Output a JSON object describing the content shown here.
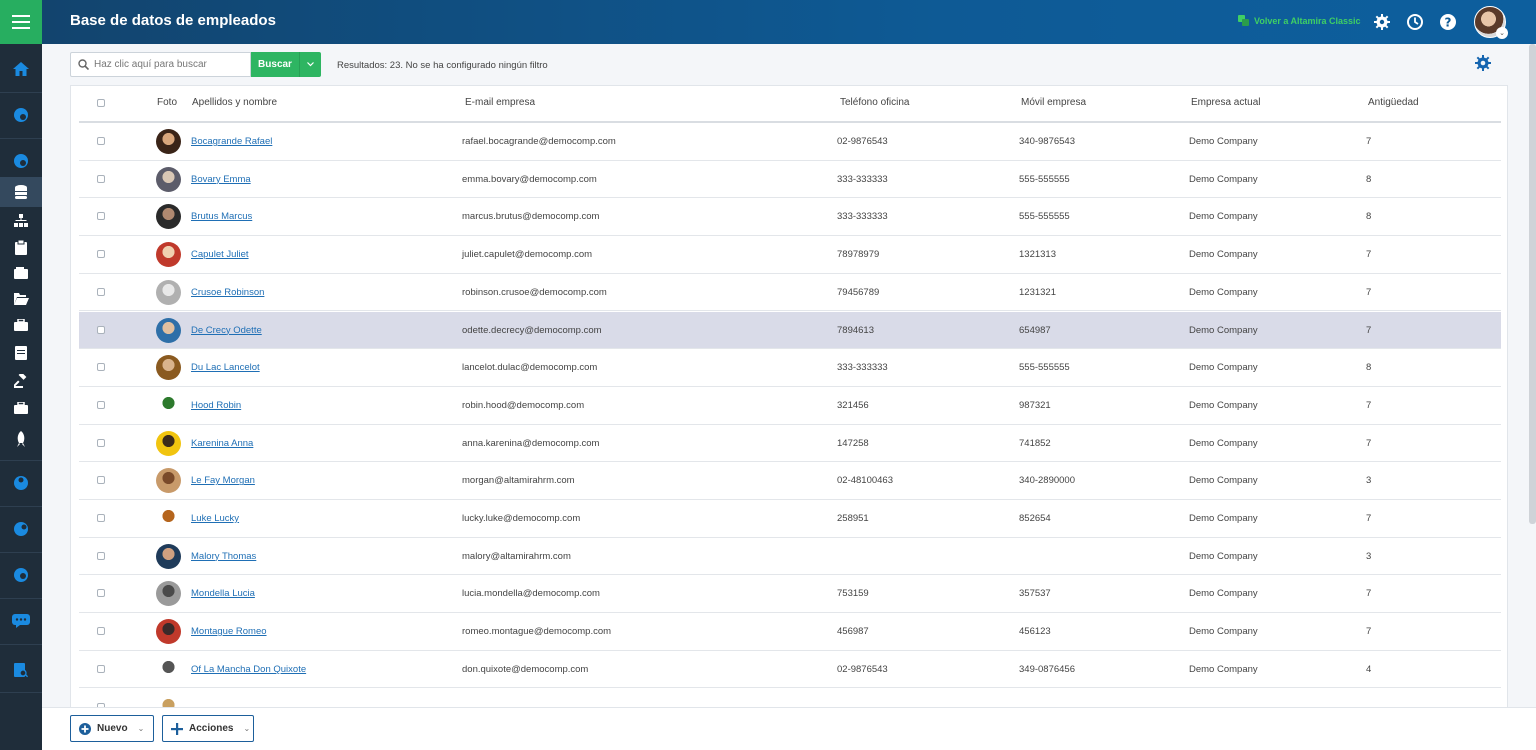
{
  "header": {
    "title": "Base de datos de empleados",
    "classic_link": "Volver a Altamira Classic",
    "icons": [
      "gear-icon",
      "clock-icon",
      "help-icon"
    ]
  },
  "search": {
    "placeholder": "Haz clic aquí para buscar",
    "button_label": "Buscar",
    "results_text": "Resultados: 23. No se ha configurado ningún filtro"
  },
  "table": {
    "headers": {
      "photo": "Foto",
      "name": "Apellidos y nombre",
      "email": "E-mail empresa",
      "office_phone": "Teléfono oficina",
      "mobile": "Móvil empresa",
      "company": "Empresa actual",
      "seniority": "Antigüedad"
    },
    "rows": [
      {
        "name": "Bocagrande Rafael",
        "email": "rafael.bocagrande@democomp.com",
        "office_phone": "02-9876543",
        "mobile": "340-9876543",
        "company": "Demo Company",
        "seniority": "7"
      },
      {
        "name": "Bovary Emma",
        "email": "emma.bovary@democomp.com",
        "office_phone": "333-333333",
        "mobile": "555-555555",
        "company": "Demo Company",
        "seniority": "8"
      },
      {
        "name": "Brutus Marcus",
        "email": "marcus.brutus@democomp.com",
        "office_phone": "333-333333",
        "mobile": "555-555555",
        "company": "Demo Company",
        "seniority": "8"
      },
      {
        "name": "Capulet Juliet",
        "email": "juliet.capulet@democomp.com",
        "office_phone": "78978979",
        "mobile": "1321313",
        "company": "Demo Company",
        "seniority": "7"
      },
      {
        "name": "Crusoe Robinson",
        "email": "robinson.crusoe@democomp.com",
        "office_phone": "79456789",
        "mobile": "1231321",
        "company": "Demo Company",
        "seniority": "7"
      },
      {
        "name": "De Crecy Odette",
        "email": "odette.decrecy@democomp.com",
        "office_phone": "7894613",
        "mobile": "654987",
        "company": "Demo Company",
        "seniority": "7"
      },
      {
        "name": "Du Lac Lancelot",
        "email": "lancelot.dulac@democomp.com",
        "office_phone": "333-333333",
        "mobile": "555-555555",
        "company": "Demo Company",
        "seniority": "8"
      },
      {
        "name": "Hood Robin",
        "email": "robin.hood@democomp.com",
        "office_phone": "321456",
        "mobile": "987321",
        "company": "Demo Company",
        "seniority": "7"
      },
      {
        "name": "Karenina Anna",
        "email": "anna.karenina@democomp.com",
        "office_phone": "147258",
        "mobile": "741852",
        "company": "Demo Company",
        "seniority": "7"
      },
      {
        "name": "Le Fay Morgan",
        "email": "morgan@altamirahrm.com",
        "office_phone": "02-48100463",
        "mobile": "340-2890000",
        "company": "Demo Company",
        "seniority": "3"
      },
      {
        "name": "Luke Lucky",
        "email": "lucky.luke@democomp.com",
        "office_phone": "258951",
        "mobile": "852654",
        "company": "Demo Company",
        "seniority": "7"
      },
      {
        "name": "Malory Thomas",
        "email": "malory@altamirahrm.com",
        "office_phone": "",
        "mobile": "",
        "company": "Demo Company",
        "seniority": "3"
      },
      {
        "name": "Mondella Lucia",
        "email": "lucia.mondella@democomp.com",
        "office_phone": "753159",
        "mobile": "357537",
        "company": "Demo Company",
        "seniority": "7"
      },
      {
        "name": "Montague Romeo",
        "email": "romeo.montague@democomp.com",
        "office_phone": "456987",
        "mobile": "456123",
        "company": "Demo Company",
        "seniority": "7"
      },
      {
        "name": "Of La Mancha Don Quixote",
        "email": "don.quixote@democomp.com",
        "office_phone": "02-9876543",
        "mobile": "349-0876456",
        "company": "Demo Company",
        "seniority": "4"
      }
    ],
    "selected_row": 5
  },
  "bottom": {
    "new_label": "Nuevo",
    "actions_label": "Acciones"
  },
  "colors": {
    "accent_green": "#2eb562",
    "header_blue": "#0e5a95",
    "sidebar": "#1f2d3a",
    "link_blue": "#1f6fb5",
    "selected_row": "#d9dbe8"
  }
}
